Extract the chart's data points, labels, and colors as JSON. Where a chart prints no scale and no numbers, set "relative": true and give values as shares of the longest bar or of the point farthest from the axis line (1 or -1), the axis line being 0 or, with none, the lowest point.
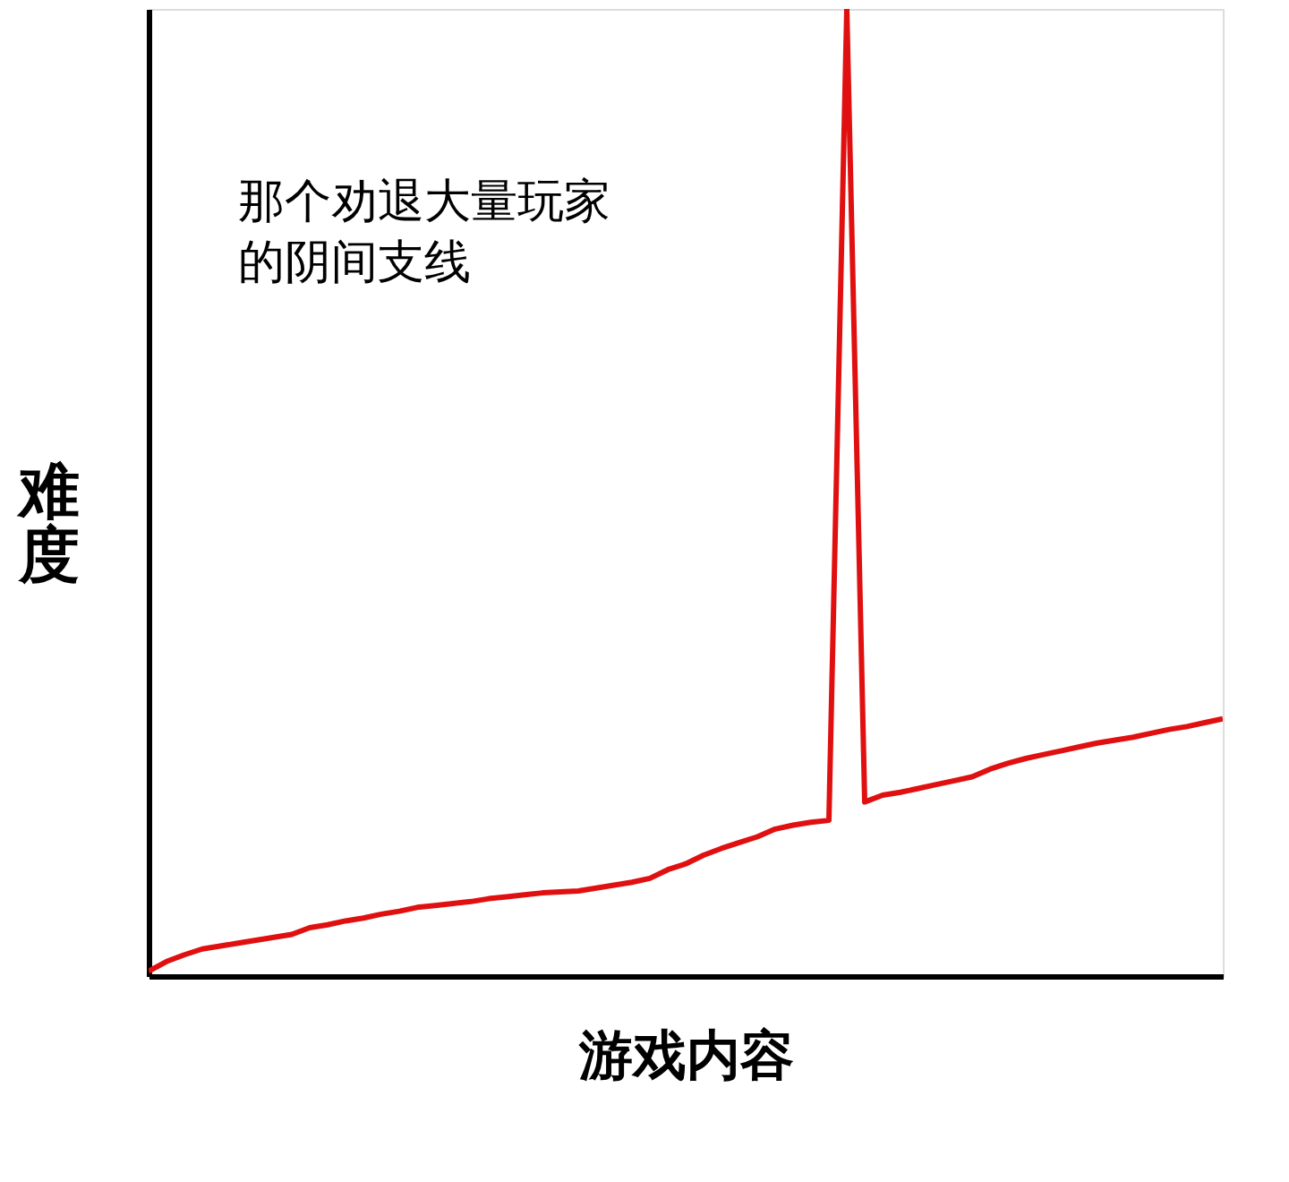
{
  "chart_data": {
    "type": "line",
    "relative": true,
    "xlabel": "游戏内容",
    "ylabel": "难度",
    "annotations": [
      "那个劝退大量玩家的阴间支线"
    ],
    "categories": [
      null,
      null,
      null,
      null,
      null,
      null,
      null,
      null,
      null,
      null,
      null,
      null,
      null,
      null,
      null,
      null,
      null,
      null,
      null,
      null,
      null,
      null,
      null,
      null,
      null,
      null,
      null,
      null,
      null,
      null,
      null,
      null,
      null,
      null,
      null,
      null,
      null,
      null,
      null,
      null,
      null,
      null,
      null,
      null,
      null,
      null,
      null,
      null,
      null,
      null,
      null,
      null,
      null,
      null,
      null,
      null,
      null,
      null,
      null,
      null,
      null
    ],
    "series": [
      {
        "color": "#e01010",
        "values": [
          0.005,
          0.015,
          0.022,
          0.028,
          0.031,
          0.034,
          0.037,
          0.04,
          0.043,
          0.05,
          0.053,
          0.057,
          0.06,
          0.064,
          0.067,
          0.071,
          0.073,
          0.075,
          0.077,
          0.08,
          0.082,
          0.084,
          0.086,
          0.087,
          0.088,
          0.091,
          0.094,
          0.097,
          0.101,
          0.11,
          0.116,
          0.125,
          0.132,
          0.138,
          0.144,
          0.152,
          0.156,
          0.159,
          0.161,
          1,
          0.18,
          0.187,
          0.19,
          0.194,
          0.198,
          0.202,
          0.206,
          0.214,
          0.22,
          0.225,
          0.229,
          0.233,
          0.237,
          0.241,
          0.244,
          0.247,
          0.251,
          0.255,
          0.258,
          0.262,
          0.266
        ]
      }
    ],
    "grid": false,
    "tick_labels": false
  }
}
